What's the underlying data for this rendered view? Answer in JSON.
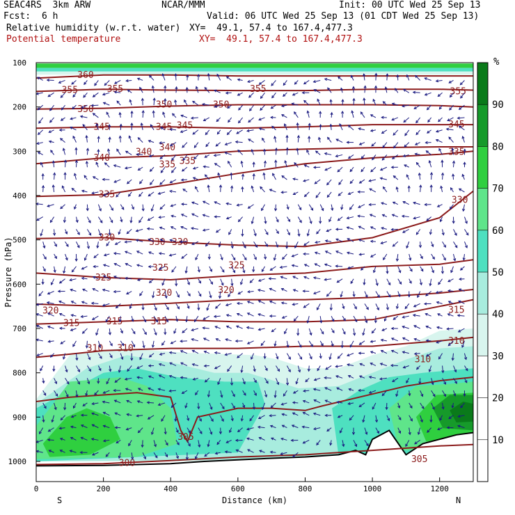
{
  "header": {
    "model": "SEAC4RS  3km ARW",
    "org": "NCAR/MMM",
    "init": "Init: 00 UTC Wed 25 Sep 13",
    "fcst_label": "Fcst:",
    "fcst_value": "6 h",
    "valid": "Valid: 06 UTC Wed 25 Sep 13 (01 CDT Wed 25 Sep 13)",
    "field1": "Relative humidity (w.r.t. water)",
    "field1_xy": "XY=  49.1, 57.4 to 167.4,477.3",
    "field2": "Potential temperature",
    "field2_xy": "XY=  49.1, 57.4 to 167.4,477.3"
  },
  "colors": {
    "theta": "#8b1a1a",
    "wind": "#1a1a80",
    "rh_30_40": "#d8f5ee",
    "rh_40_50": "#a8ecde",
    "rh_50_60": "#4ee0c0",
    "rh_60_70": "#5fe58a",
    "rh_70_80": "#2fcf3f",
    "rh_80_90": "#169a2a",
    "rh_90_100": "#0a7a1a"
  },
  "chart_data": {
    "type": "cross-section",
    "xlabel": "Distance (km)",
    "ylabel": "Pressure (hPa)",
    "xlim": [
      0,
      1300
    ],
    "ylim": [
      1000,
      100
    ],
    "x_ticks": [
      0,
      200,
      400,
      600,
      800,
      1000,
      1200
    ],
    "y_ticks": [
      100,
      200,
      300,
      400,
      500,
      600,
      700,
      800,
      900,
      1000
    ],
    "x_end_labels": {
      "left": "S",
      "right": "N"
    },
    "colorbar": {
      "unit": "%",
      "ticks": [
        10,
        20,
        30,
        40,
        50,
        60,
        70,
        80,
        90
      ],
      "bands": [
        {
          "from": 30,
          "to": 40,
          "color": "#d8f5ee"
        },
        {
          "from": 40,
          "to": 50,
          "color": "#a8ecde"
        },
        {
          "from": 50,
          "to": 60,
          "color": "#4ee0c0"
        },
        {
          "from": 60,
          "to": 70,
          "color": "#5fe58a"
        },
        {
          "from": 70,
          "to": 80,
          "color": "#2fcf3f"
        },
        {
          "from": 80,
          "to": 90,
          "color": "#169a2a"
        },
        {
          "from": 90,
          "to": 100,
          "color": "#0a7a1a"
        }
      ]
    },
    "theta_contours": [
      {
        "value": 300,
        "points": [
          [
            0,
            1007
          ],
          [
            200,
            1005
          ],
          [
            400,
            998
          ],
          [
            600,
            990
          ],
          [
            800,
            985
          ],
          [
            1000,
            975
          ],
          [
            1200,
            965
          ],
          [
            1300,
            962
          ]
        ],
        "labels": [
          [
            270,
            1004
          ]
        ]
      },
      {
        "value": 305,
        "points": [
          [
            0,
            865
          ],
          [
            100,
            855
          ],
          [
            200,
            850
          ],
          [
            300,
            845
          ],
          [
            400,
            855
          ],
          [
            430,
            930
          ],
          [
            450,
            955
          ],
          [
            480,
            900
          ],
          [
            600,
            880
          ],
          [
            700,
            880
          ],
          [
            800,
            885
          ],
          [
            850,
            875
          ],
          [
            1000,
            848
          ],
          [
            1100,
            830
          ],
          [
            1200,
            818
          ],
          [
            1300,
            810
          ]
        ],
        "labels": [
          [
            445,
            945
          ],
          [
            1140,
            995
          ]
        ]
      },
      {
        "value": 310,
        "points": [
          [
            0,
            765
          ],
          [
            100,
            758
          ],
          [
            200,
            750
          ],
          [
            400,
            745
          ],
          [
            600,
            745
          ],
          [
            800,
            740
          ],
          [
            1000,
            740
          ],
          [
            1200,
            728
          ],
          [
            1300,
            720
          ]
        ],
        "labels": [
          [
            175,
            745
          ],
          [
            265,
            745
          ],
          [
            1150,
            770
          ],
          [
            1250,
            728
          ]
        ]
      },
      {
        "value": 315,
        "points": [
          [
            0,
            690
          ],
          [
            200,
            685
          ],
          [
            400,
            680
          ],
          [
            600,
            685
          ],
          [
            800,
            685
          ],
          [
            1000,
            680
          ],
          [
            1200,
            650
          ],
          [
            1300,
            635
          ]
        ],
        "labels": [
          [
            105,
            688
          ],
          [
            233,
            684
          ],
          [
            365,
            684
          ],
          [
            1250,
            658
          ]
        ]
      },
      {
        "value": 320,
        "points": [
          [
            0,
            645
          ],
          [
            200,
            650
          ],
          [
            400,
            643
          ],
          [
            600,
            635
          ],
          [
            800,
            635
          ],
          [
            1000,
            630
          ],
          [
            1200,
            620
          ],
          [
            1300,
            612
          ]
        ],
        "labels": [
          [
            43,
            660
          ],
          [
            380,
            620
          ],
          [
            565,
            614
          ]
        ]
      },
      {
        "value": 325,
        "points": [
          [
            0,
            575
          ],
          [
            200,
            585
          ],
          [
            400,
            590
          ],
          [
            600,
            580
          ],
          [
            800,
            575
          ],
          [
            1000,
            560
          ],
          [
            1200,
            555
          ],
          [
            1300,
            545
          ]
        ],
        "labels": [
          [
            200,
            585
          ],
          [
            370,
            563
          ],
          [
            596,
            558
          ]
        ]
      },
      {
        "value": 330,
        "points": [
          [
            0,
            497
          ],
          [
            200,
            495
          ],
          [
            400,
            505
          ],
          [
            600,
            512
          ],
          [
            800,
            515
          ],
          [
            1000,
            495
          ],
          [
            1200,
            450
          ],
          [
            1300,
            390
          ]
        ],
        "labels": [
          [
            210,
            495
          ],
          [
            360,
            505
          ],
          [
            428,
            505
          ],
          [
            1260,
            410
          ]
        ]
      },
      {
        "value": 335,
        "points": [
          [
            0,
            402
          ],
          [
            200,
            398
          ],
          [
            400,
            375
          ],
          [
            600,
            350
          ],
          [
            800,
            328
          ],
          [
            1000,
            315
          ],
          [
            1200,
            307
          ],
          [
            1300,
            300
          ]
        ],
        "labels": [
          [
            210,
            398
          ],
          [
            390,
            330
          ],
          [
            450,
            322
          ],
          [
            1250,
            302
          ]
        ]
      },
      {
        "value": 340,
        "points": [
          [
            0,
            328
          ],
          [
            200,
            315
          ],
          [
            400,
            310
          ],
          [
            600,
            300
          ],
          [
            800,
            295
          ],
          [
            1000,
            292
          ],
          [
            1200,
            290
          ],
          [
            1300,
            290
          ]
        ],
        "labels": [
          [
            195,
            315
          ],
          [
            320,
            302
          ],
          [
            390,
            292
          ]
        ]
      },
      {
        "value": 345,
        "points": [
          [
            0,
            248
          ],
          [
            200,
            245
          ],
          [
            400,
            245
          ],
          [
            600,
            248
          ],
          [
            800,
            245
          ],
          [
            1000,
            240
          ],
          [
            1200,
            240
          ],
          [
            1300,
            240
          ]
        ],
        "labels": [
          [
            195,
            245
          ],
          [
            380,
            245
          ],
          [
            442,
            242
          ],
          [
            1250,
            240
          ]
        ]
      },
      {
        "value": 350,
        "points": [
          [
            0,
            205
          ],
          [
            200,
            203
          ],
          [
            400,
            198
          ],
          [
            600,
            195
          ],
          [
            800,
            195
          ],
          [
            1000,
            195
          ],
          [
            1200,
            197
          ],
          [
            1300,
            200
          ]
        ],
        "labels": [
          [
            147,
            205
          ],
          [
            380,
            195
          ],
          [
            550,
            195
          ]
        ]
      },
      {
        "value": 355,
        "points": [
          [
            0,
            165
          ],
          [
            200,
            160
          ],
          [
            400,
            162
          ],
          [
            600,
            163
          ],
          [
            800,
            163
          ],
          [
            1000,
            160
          ],
          [
            1200,
            160
          ],
          [
            1300,
            162
          ]
        ],
        "labels": [
          [
            100,
            162
          ],
          [
            235,
            160
          ],
          [
            660,
            160
          ],
          [
            1255,
            165
          ]
        ]
      },
      {
        "value": 360,
        "points": [
          [
            0,
            135
          ],
          [
            200,
            128
          ],
          [
            400,
            128
          ],
          [
            600,
            130
          ],
          [
            800,
            130
          ],
          [
            1000,
            130
          ],
          [
            1200,
            130
          ],
          [
            1300,
            130
          ]
        ],
        "labels": [
          [
            147,
            128
          ]
        ]
      }
    ],
    "rh_regions": [
      {
        "band": "30-40",
        "outline": [
          [
            0,
            860
          ],
          [
            100,
            760
          ],
          [
            250,
            745
          ],
          [
            450,
            755
          ],
          [
            650,
            760
          ],
          [
            720,
            770
          ],
          [
            800,
            790
          ],
          [
            900,
            790
          ],
          [
            1000,
            760
          ],
          [
            1100,
            740
          ],
          [
            1200,
            705
          ],
          [
            1300,
            700
          ],
          [
            1300,
            1000
          ],
          [
            0,
            1000
          ]
        ]
      },
      {
        "band": "40-50",
        "outline": [
          [
            0,
            870
          ],
          [
            150,
            790
          ],
          [
            270,
            760
          ],
          [
            420,
            780
          ],
          [
            530,
            800
          ],
          [
            630,
            800
          ],
          [
            780,
            835
          ],
          [
            900,
            830
          ],
          [
            1000,
            800
          ],
          [
            1100,
            770
          ],
          [
            1200,
            745
          ],
          [
            1300,
            740
          ],
          [
            1300,
            985
          ],
          [
            1050,
            990
          ],
          [
            760,
            995
          ],
          [
            0,
            1000
          ]
        ]
      },
      {
        "band": "50-60",
        "outline": [
          [
            0,
            880
          ],
          [
            200,
            800
          ],
          [
            300,
            790
          ],
          [
            420,
            810
          ],
          [
            560,
            820
          ],
          [
            660,
            820
          ],
          [
            680,
            870
          ],
          [
            600,
            980
          ],
          [
            0,
            1000
          ]
        ]
      },
      {
        "band": "50-60",
        "outline": [
          [
            880,
            880
          ],
          [
            960,
            840
          ],
          [
            1050,
            810
          ],
          [
            1150,
            800
          ],
          [
            1300,
            790
          ],
          [
            1300,
            980
          ],
          [
            900,
            990
          ]
        ]
      },
      {
        "band": "60-70",
        "outline": [
          [
            0,
            920
          ],
          [
            100,
            820
          ],
          [
            250,
            810
          ],
          [
            330,
            830
          ],
          [
            400,
            880
          ],
          [
            420,
            960
          ],
          [
            300,
            990
          ],
          [
            0,
            995
          ]
        ]
      },
      {
        "band": "60-70",
        "outline": [
          [
            1050,
            880
          ],
          [
            1130,
            830
          ],
          [
            1230,
            825
          ],
          [
            1300,
            820
          ],
          [
            1300,
            970
          ],
          [
            1080,
            975
          ]
        ]
      },
      {
        "band": "70-80",
        "outline": [
          [
            20,
            960
          ],
          [
            90,
            900
          ],
          [
            150,
            880
          ],
          [
            220,
            900
          ],
          [
            250,
            950
          ],
          [
            160,
            985
          ],
          [
            40,
            990
          ]
        ]
      },
      {
        "band": "70-80",
        "outline": [
          [
            1130,
            900
          ],
          [
            1190,
            850
          ],
          [
            1300,
            845
          ],
          [
            1300,
            950
          ],
          [
            1160,
            955
          ]
        ]
      },
      {
        "band": "80-90",
        "outline": [
          [
            1180,
            880
          ],
          [
            1230,
            850
          ],
          [
            1300,
            850
          ],
          [
            1300,
            930
          ],
          [
            1210,
            925
          ]
        ]
      },
      {
        "band": "90-100",
        "outline": [
          [
            1230,
            885
          ],
          [
            1270,
            865
          ],
          [
            1300,
            870
          ],
          [
            1300,
            910
          ],
          [
            1250,
            912
          ]
        ]
      },
      {
        "band": "70-80",
        "outline": [
          [
            0,
            102
          ],
          [
            1300,
            102
          ],
          [
            1300,
            112
          ],
          [
            0,
            112
          ]
        ]
      },
      {
        "band": "50-60",
        "outline": [
          [
            0,
            112
          ],
          [
            1300,
            112
          ],
          [
            1300,
            120
          ],
          [
            0,
            120
          ]
        ]
      },
      {
        "band": "30-40",
        "outline": [
          [
            0,
            120
          ],
          [
            1300,
            120
          ],
          [
            1300,
            127
          ],
          [
            0,
            127
          ]
        ]
      }
    ],
    "terrain_line": [
      [
        0,
        1010
      ],
      [
        200,
        1009
      ],
      [
        400,
        1005
      ],
      [
        500,
        1000
      ],
      [
        700,
        993
      ],
      [
        800,
        990
      ],
      [
        900,
        985
      ],
      [
        950,
        975
      ],
      [
        980,
        985
      ],
      [
        1000,
        950
      ],
      [
        1050,
        930
      ],
      [
        1100,
        985
      ],
      [
        1150,
        960
      ],
      [
        1200,
        950
      ],
      [
        1250,
        940
      ],
      [
        1300,
        935
      ]
    ]
  }
}
